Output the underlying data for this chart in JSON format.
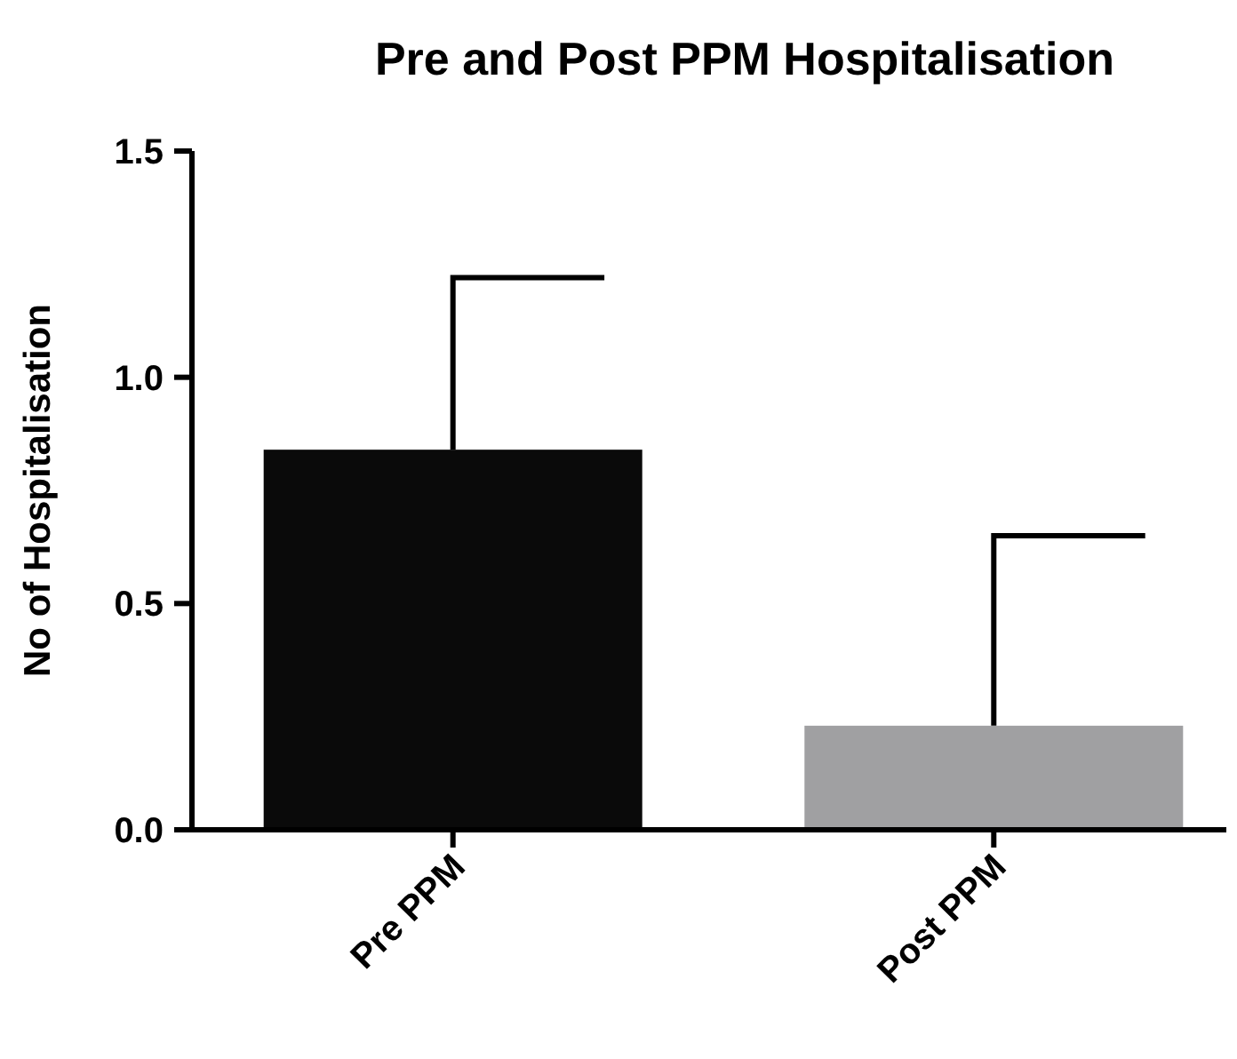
{
  "chart_data": {
    "type": "bar",
    "title": "Pre and Post PPM Hospitalisation",
    "ylabel": "No of Hospitalisation",
    "categories": [
      "Pre PPM",
      "Post PPM"
    ],
    "values": [
      0.84,
      0.23
    ],
    "colors": [
      "#0a0a0a",
      "#a0a0a2"
    ],
    "errors": [
      [
        0.84,
        1.22
      ],
      [
        0.23,
        0.65
      ]
    ],
    "ylim": [
      0,
      1.5
    ],
    "yticks": [
      {
        "value": 0,
        "label": "0.0"
      },
      {
        "value": 0.5,
        "label": "0.5"
      },
      {
        "value": 1,
        "label": "1.0"
      },
      {
        "value": 1.5,
        "label": "1.5"
      }
    ],
    "grid": false
  }
}
